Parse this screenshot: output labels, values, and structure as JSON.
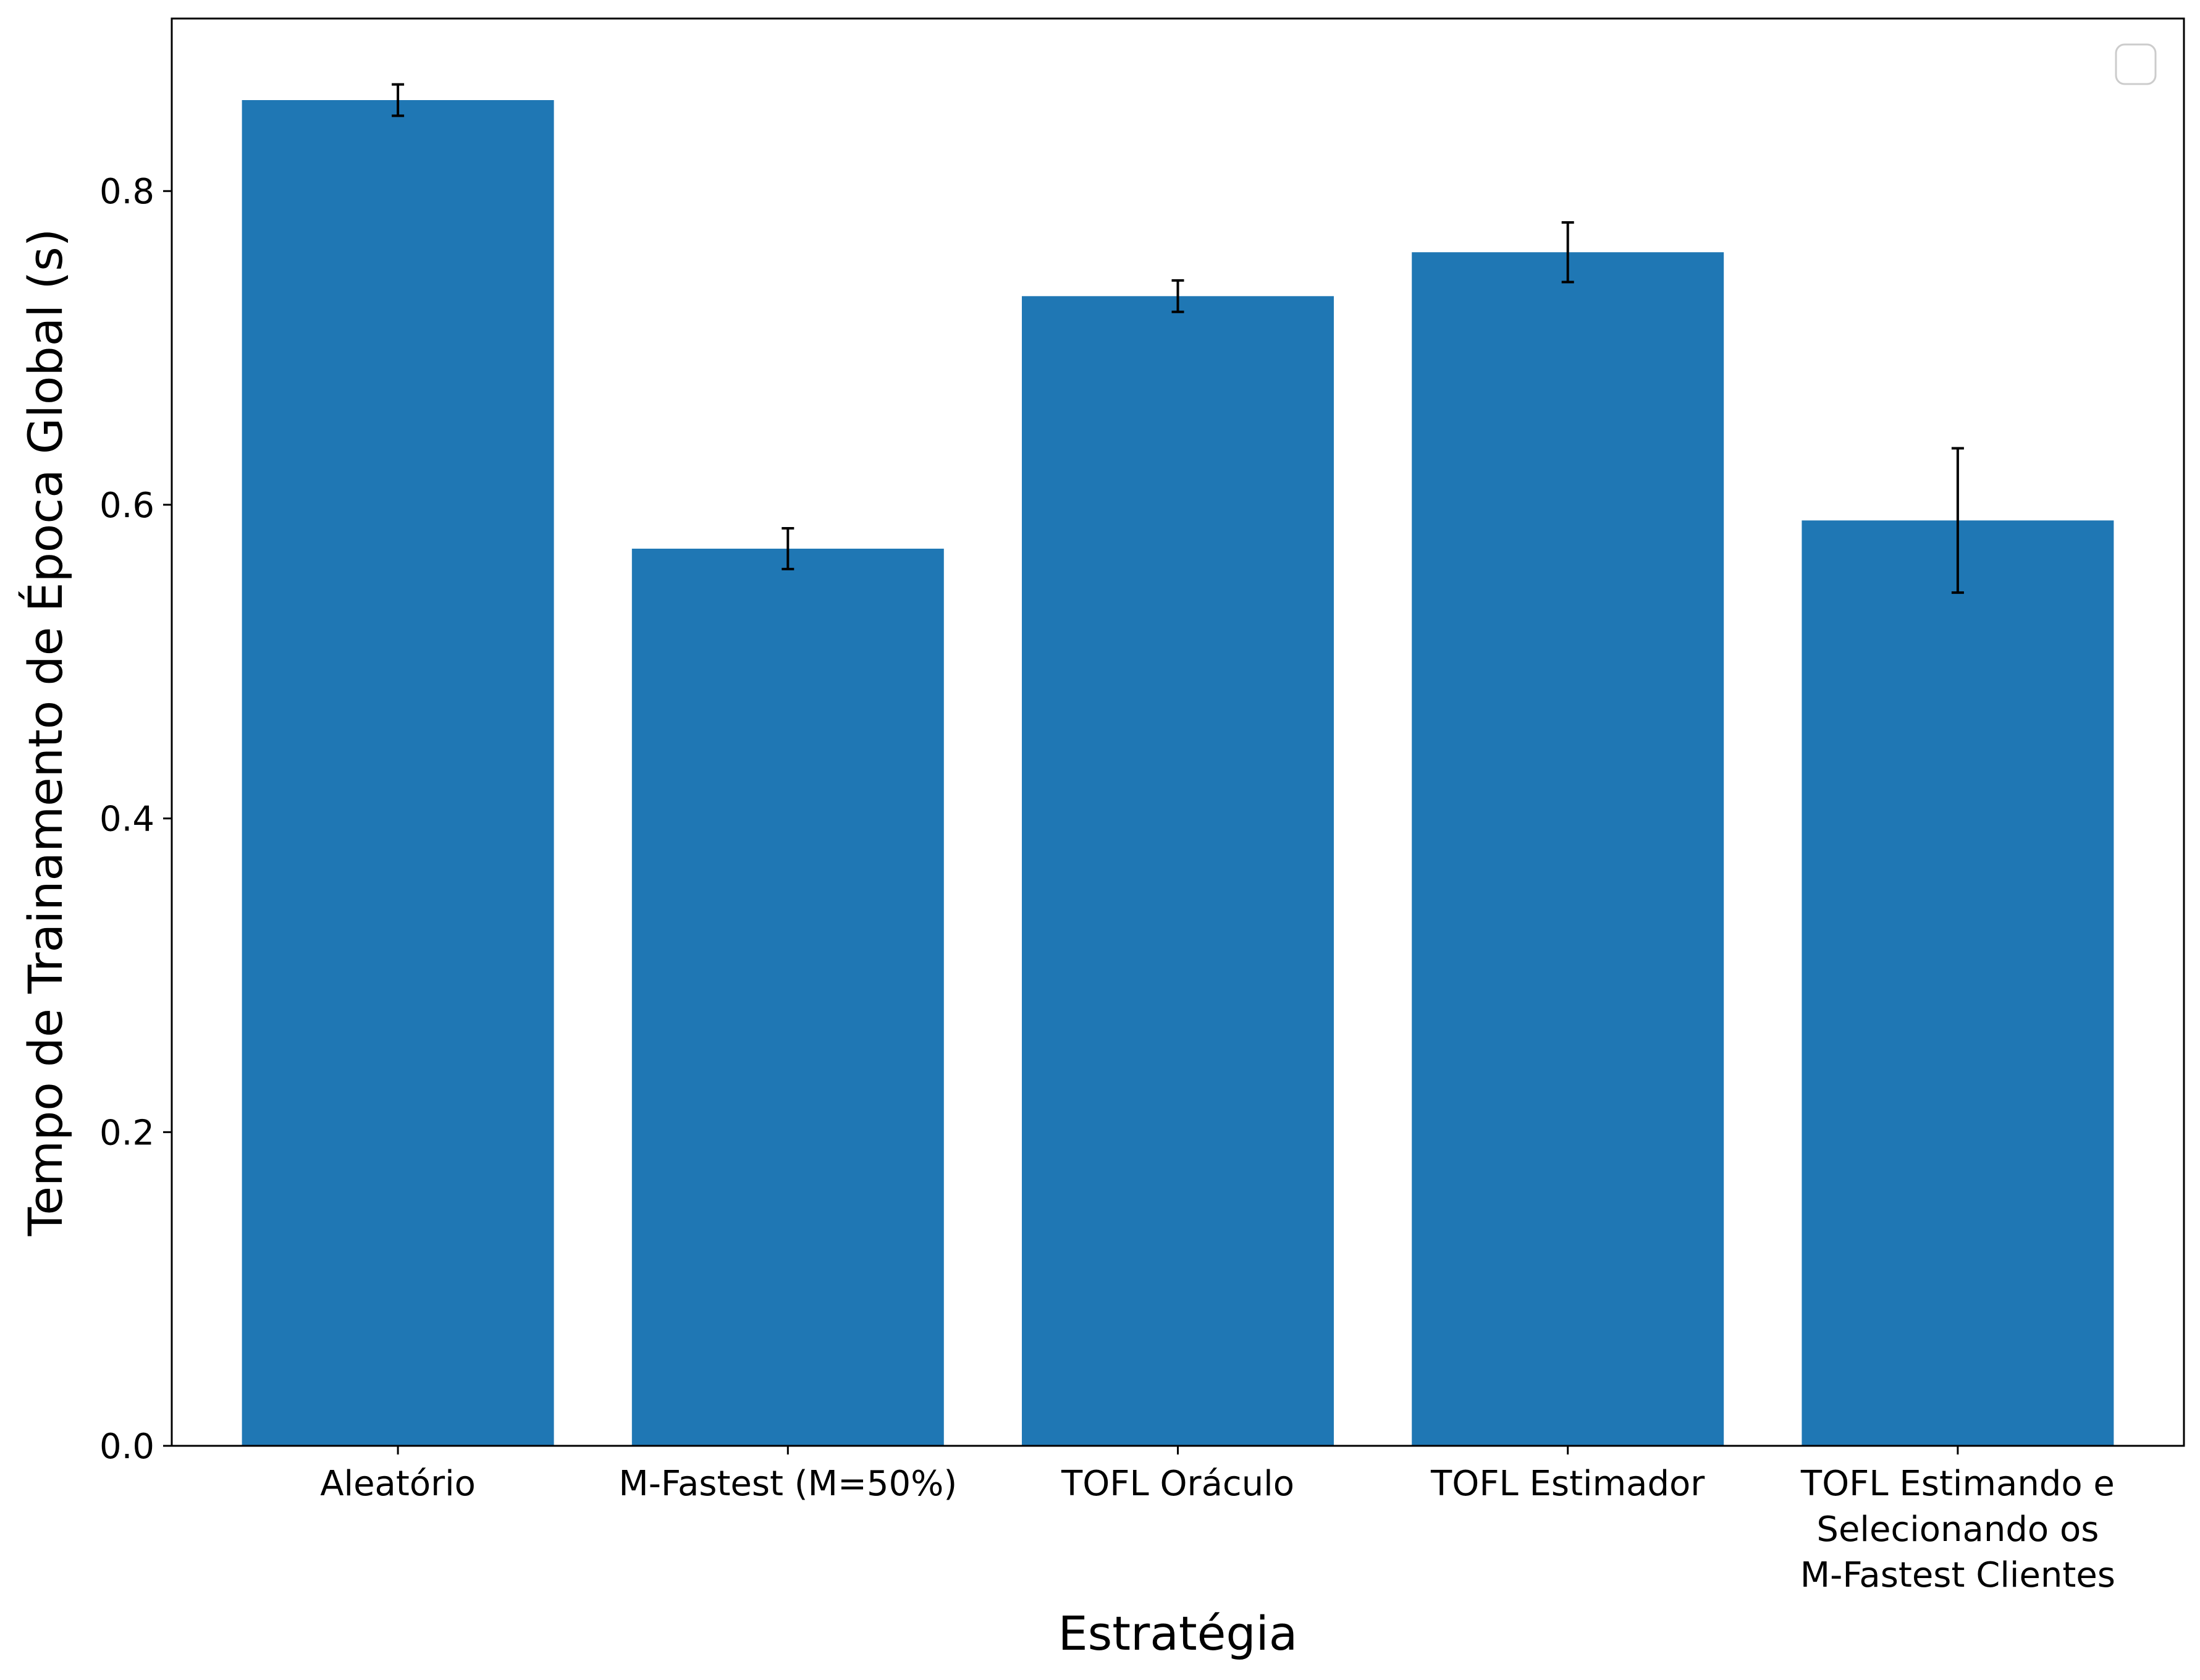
{
  "chart_data": {
    "type": "bar",
    "title": "",
    "xlabel": "Estratégia",
    "ylabel": "Tempo de Trainamento de Época Global (s)",
    "categories": [
      [
        "Aleatório"
      ],
      [
        "M-Fastest (M=50%)"
      ],
      [
        "TOFL Oráculo"
      ],
      [
        "TOFL Estimador"
      ],
      [
        "TOFL Estimando e",
        "Selecionando os",
        "M-Fastest Clientes"
      ]
    ],
    "values": [
      0.858,
      0.572,
      0.733,
      0.761,
      0.59
    ],
    "errors": [
      0.01,
      0.013,
      0.01,
      0.019,
      0.046
    ],
    "ylim": [
      0.0,
      0.91
    ],
    "yticks": [
      "0.0",
      "0.2",
      "0.4",
      "0.6",
      "0.8"
    ],
    "grid": false,
    "legend": {
      "placement": "top-right",
      "entries": []
    },
    "colors": {
      "bar": "#1f77b4",
      "error": "#000000",
      "axis": "#000000",
      "legend_border": "#cccccc"
    }
  }
}
